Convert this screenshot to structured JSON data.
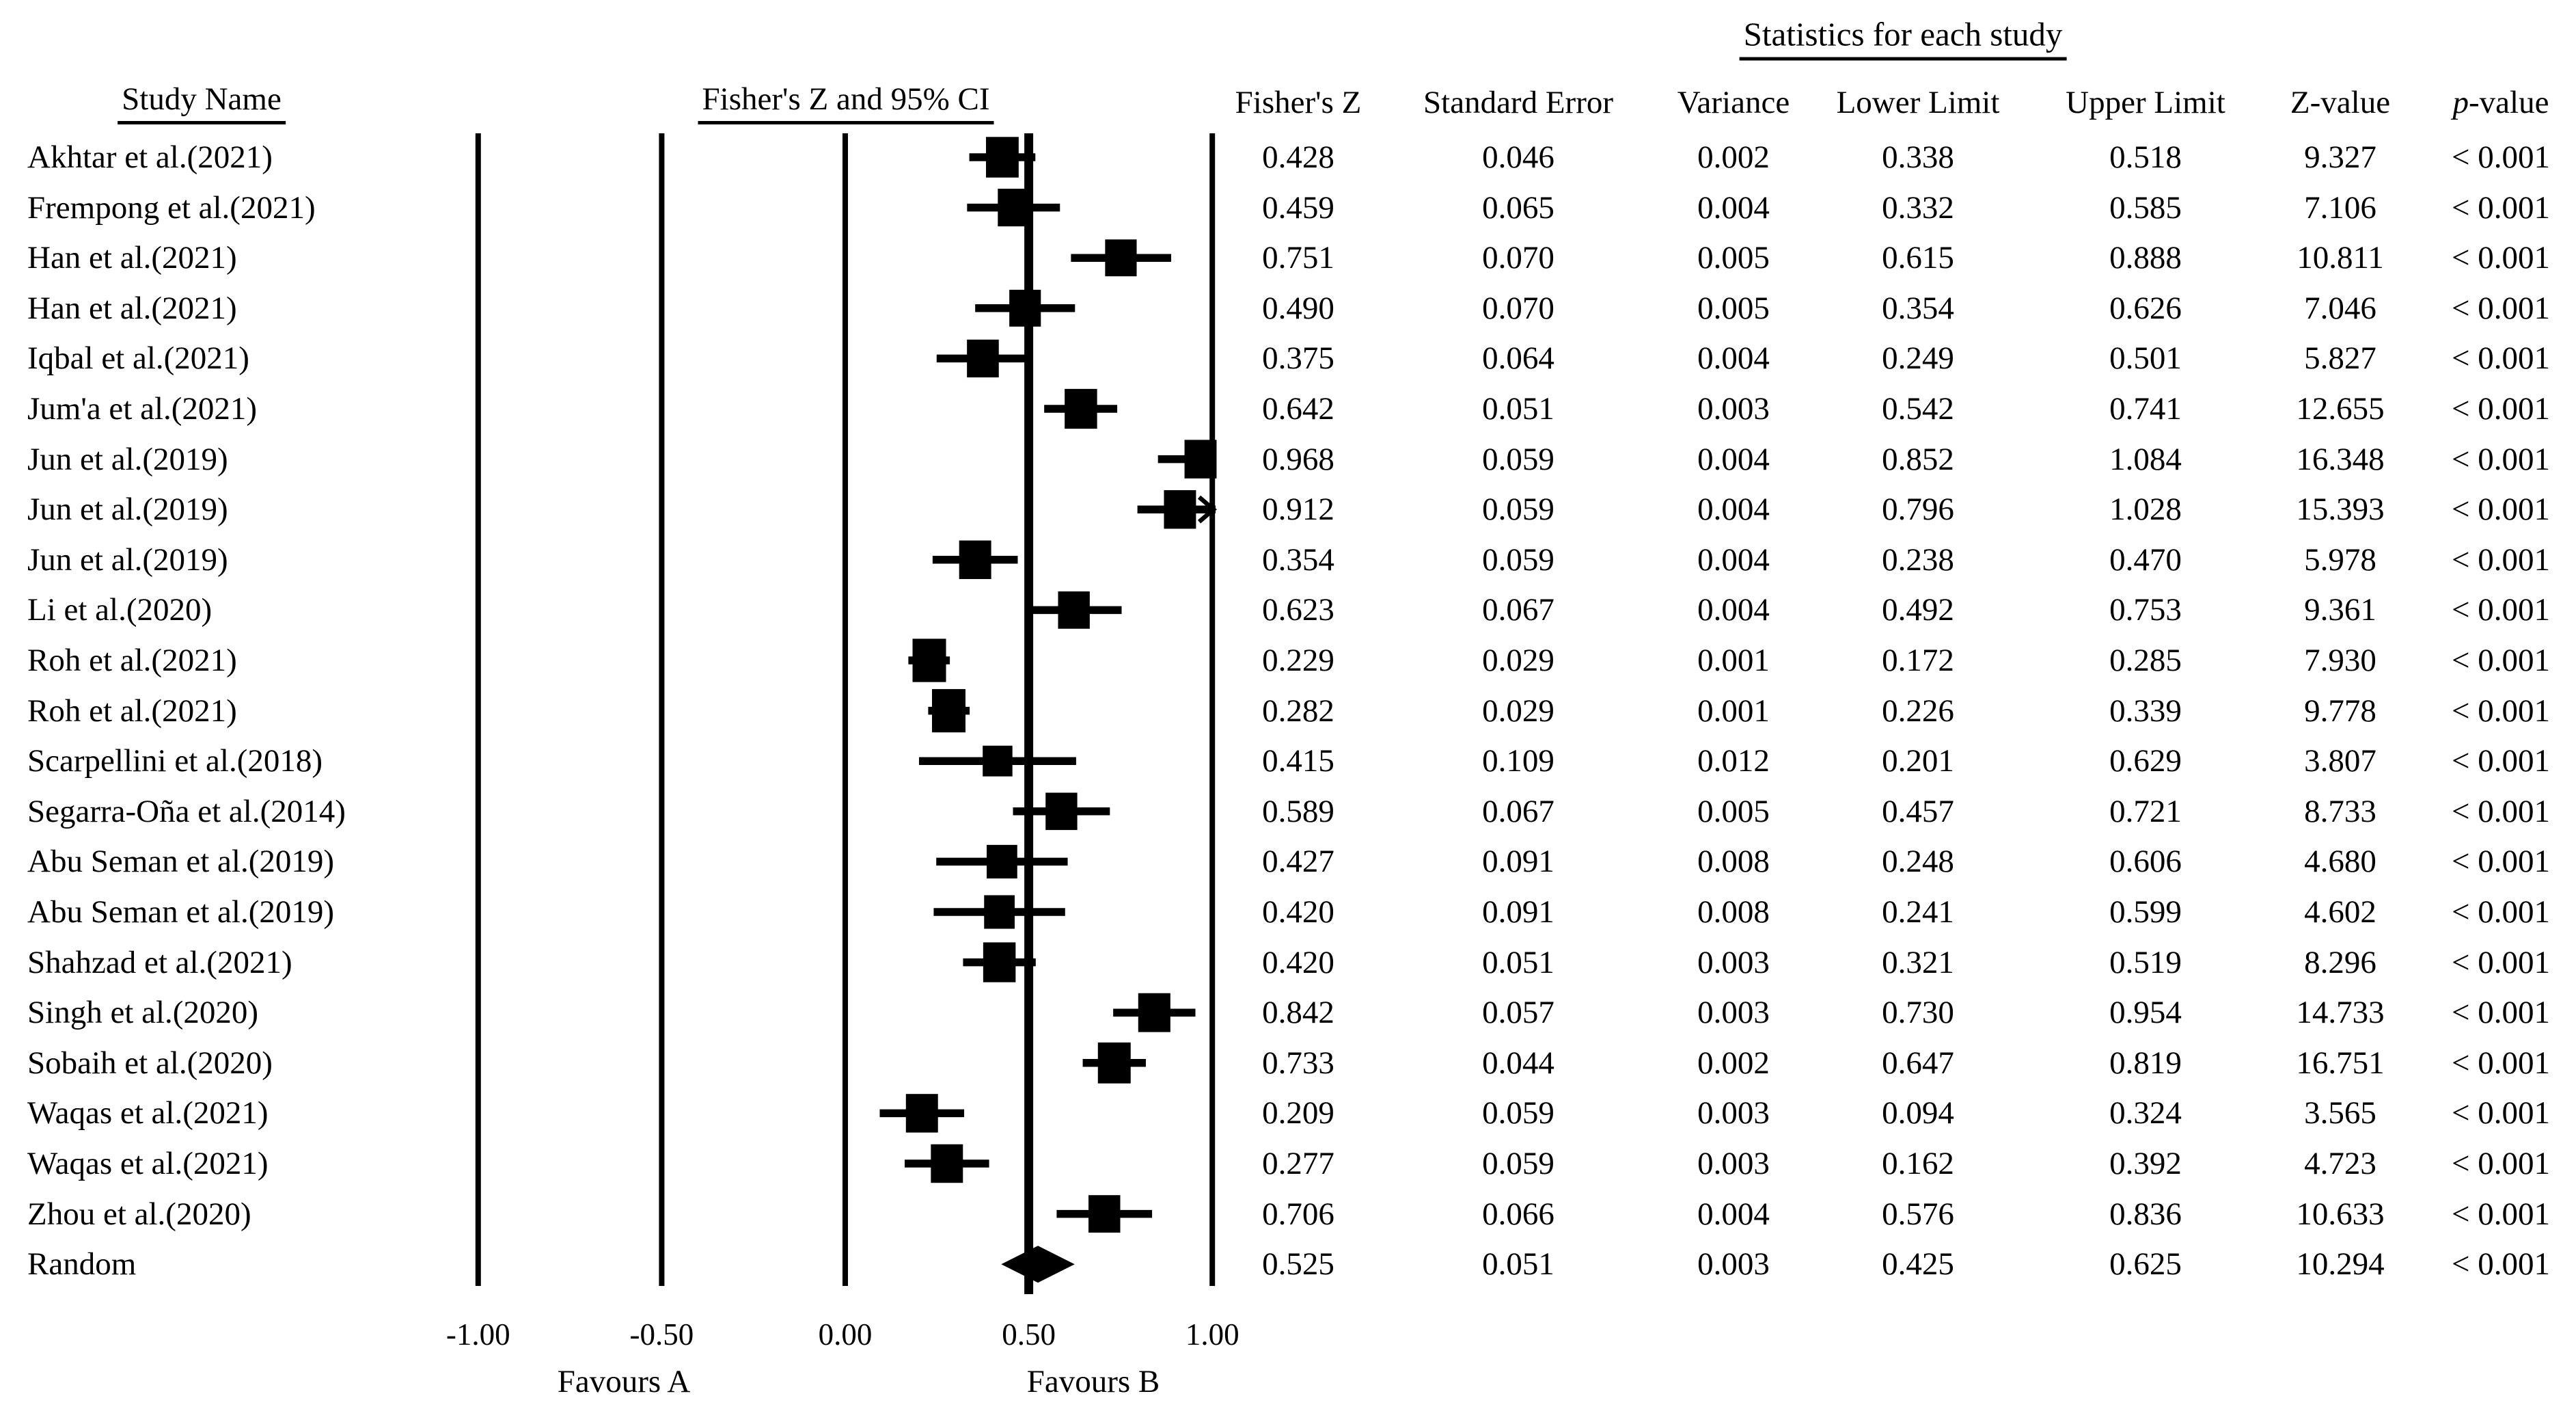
{
  "headers": {
    "stats_title": "Statistics for each study",
    "study_col": "Study Name",
    "plot_col": "Fisher's Z and 95% CI",
    "stat_cols": [
      "Fisher's Z",
      "Standard Error",
      "Variance",
      "Lower Limit",
      "Upper Limit",
      "Z-value",
      "p-value"
    ]
  },
  "axis": {
    "tick_labels": [
      "-1.00",
      "-0.50",
      "0.00",
      "0.50",
      "1.00"
    ],
    "favours_a": "Favours A",
    "favours_b": "Favours B"
  },
  "colors": {
    "ink": "#000000",
    "background": "#ffffff"
  },
  "chart_data": {
    "type": "scatter",
    "subtype": "forest-plot",
    "title": "Fisher's Z and 95% CI",
    "stats_title": "Statistics for each study",
    "xlabel_left": "Favours A",
    "xlabel_right": "Favours B",
    "xlim": [
      -1.0,
      1.0
    ],
    "xticks": [
      -1.0,
      -0.5,
      0.0,
      0.5,
      1.0
    ],
    "ref_line": 0.5,
    "grid": false,
    "columns": [
      "Fisher's Z",
      "Standard Error",
      "Variance",
      "Lower Limit",
      "Upper Limit",
      "Z-value",
      "p-value"
    ],
    "rows": [
      {
        "study": "Akhtar et al.(2021)",
        "fishers_z": 0.428,
        "se": 0.046,
        "variance": 0.002,
        "lower": 0.338,
        "upper": 0.518,
        "z_value": 9.327,
        "p_value": "< 0.001",
        "summary": false
      },
      {
        "study": "Frempong et al.(2021)",
        "fishers_z": 0.459,
        "se": 0.065,
        "variance": 0.004,
        "lower": 0.332,
        "upper": 0.585,
        "z_value": 7.106,
        "p_value": "< 0.001",
        "summary": false
      },
      {
        "study": "Han et al.(2021)",
        "fishers_z": 0.751,
        "se": 0.07,
        "variance": 0.005,
        "lower": 0.615,
        "upper": 0.888,
        "z_value": 10.811,
        "p_value": "< 0.001",
        "summary": false
      },
      {
        "study": "Han et al.(2021)",
        "fishers_z": 0.49,
        "se": 0.07,
        "variance": 0.005,
        "lower": 0.354,
        "upper": 0.626,
        "z_value": 7.046,
        "p_value": "< 0.001",
        "summary": false
      },
      {
        "study": "Iqbal et al.(2021)",
        "fishers_z": 0.375,
        "se": 0.064,
        "variance": 0.004,
        "lower": 0.249,
        "upper": 0.501,
        "z_value": 5.827,
        "p_value": "< 0.001",
        "summary": false
      },
      {
        "study": "Jum'a et al.(2021)",
        "fishers_z": 0.642,
        "se": 0.051,
        "variance": 0.003,
        "lower": 0.542,
        "upper": 0.741,
        "z_value": 12.655,
        "p_value": "< 0.001",
        "summary": false
      },
      {
        "study": "Jun et al.(2019)",
        "fishers_z": 0.968,
        "se": 0.059,
        "variance": 0.004,
        "lower": 0.852,
        "upper": 1.084,
        "z_value": 16.348,
        "p_value": "< 0.001",
        "summary": false
      },
      {
        "study": "Jun et al.(2019)",
        "fishers_z": 0.912,
        "se": 0.059,
        "variance": 0.004,
        "lower": 0.796,
        "upper": 1.028,
        "z_value": 15.393,
        "p_value": "< 0.001",
        "summary": false
      },
      {
        "study": "Jun et al.(2019)",
        "fishers_z": 0.354,
        "se": 0.059,
        "variance": 0.004,
        "lower": 0.238,
        "upper": 0.47,
        "z_value": 5.978,
        "p_value": "< 0.001",
        "summary": false
      },
      {
        "study": "Li et al.(2020)",
        "fishers_z": 0.623,
        "se": 0.067,
        "variance": 0.004,
        "lower": 0.492,
        "upper": 0.753,
        "z_value": 9.361,
        "p_value": "< 0.001",
        "summary": false
      },
      {
        "study": "Roh et al.(2021)",
        "fishers_z": 0.229,
        "se": 0.029,
        "variance": 0.001,
        "lower": 0.172,
        "upper": 0.285,
        "z_value": 7.93,
        "p_value": "< 0.001",
        "summary": false
      },
      {
        "study": "Roh et al.(2021)",
        "fishers_z": 0.282,
        "se": 0.029,
        "variance": 0.001,
        "lower": 0.226,
        "upper": 0.339,
        "z_value": 9.778,
        "p_value": "< 0.001",
        "summary": false
      },
      {
        "study": "Scarpellini et al.(2018)",
        "fishers_z": 0.415,
        "se": 0.109,
        "variance": 0.012,
        "lower": 0.201,
        "upper": 0.629,
        "z_value": 3.807,
        "p_value": "< 0.001",
        "summary": false
      },
      {
        "study": "Segarra-Oña et al.(2014)",
        "fishers_z": 0.589,
        "se": 0.067,
        "variance": 0.005,
        "lower": 0.457,
        "upper": 0.721,
        "z_value": 8.733,
        "p_value": "< 0.001",
        "summary": false
      },
      {
        "study": "Abu Seman et al.(2019)",
        "fishers_z": 0.427,
        "se": 0.091,
        "variance": 0.008,
        "lower": 0.248,
        "upper": 0.606,
        "z_value": 4.68,
        "p_value": "< 0.001",
        "summary": false
      },
      {
        "study": "Abu Seman et al.(2019)",
        "fishers_z": 0.42,
        "se": 0.091,
        "variance": 0.008,
        "lower": 0.241,
        "upper": 0.599,
        "z_value": 4.602,
        "p_value": "< 0.001",
        "summary": false
      },
      {
        "study": "Shahzad et al.(2021)",
        "fishers_z": 0.42,
        "se": 0.051,
        "variance": 0.003,
        "lower": 0.321,
        "upper": 0.519,
        "z_value": 8.296,
        "p_value": "< 0.001",
        "summary": false
      },
      {
        "study": "Singh et al.(2020)",
        "fishers_z": 0.842,
        "se": 0.057,
        "variance": 0.003,
        "lower": 0.73,
        "upper": 0.954,
        "z_value": 14.733,
        "p_value": "< 0.001",
        "summary": false
      },
      {
        "study": "Sobaih et al.(2020)",
        "fishers_z": 0.733,
        "se": 0.044,
        "variance": 0.002,
        "lower": 0.647,
        "upper": 0.819,
        "z_value": 16.751,
        "p_value": "< 0.001",
        "summary": false
      },
      {
        "study": "Waqas et al.(2021)",
        "fishers_z": 0.209,
        "se": 0.059,
        "variance": 0.003,
        "lower": 0.094,
        "upper": 0.324,
        "z_value": 3.565,
        "p_value": "< 0.001",
        "summary": false
      },
      {
        "study": "Waqas et al.(2021)",
        "fishers_z": 0.277,
        "se": 0.059,
        "variance": 0.003,
        "lower": 0.162,
        "upper": 0.392,
        "z_value": 4.723,
        "p_value": "< 0.001",
        "summary": false
      },
      {
        "study": "Zhou et al.(2020)",
        "fishers_z": 0.706,
        "se": 0.066,
        "variance": 0.004,
        "lower": 0.576,
        "upper": 0.836,
        "z_value": 10.633,
        "p_value": "< 0.001",
        "summary": false
      },
      {
        "study": "Random",
        "fishers_z": 0.525,
        "se": 0.051,
        "variance": 0.003,
        "lower": 0.425,
        "upper": 0.625,
        "z_value": 10.294,
        "p_value": "< 0.001",
        "summary": true
      }
    ]
  }
}
